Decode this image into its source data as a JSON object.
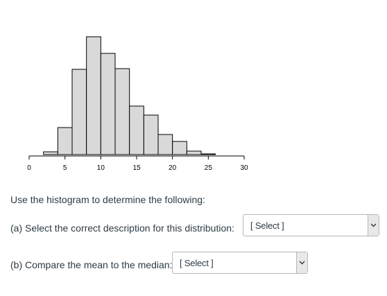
{
  "chart_data": {
    "type": "bar",
    "title": "",
    "xlabel": "",
    "ylabel": "",
    "x_ticks": [
      0,
      5,
      10,
      15,
      20,
      25,
      30
    ],
    "x_tick_labels": [
      "0",
      "5",
      "10",
      "15",
      "20",
      "25",
      "30"
    ],
    "xlim": [
      0,
      30
    ],
    "bin_width": 2,
    "bins": [
      {
        "start": 2,
        "end": 4,
        "value": 4
      },
      {
        "start": 4,
        "end": 6,
        "value": 39
      },
      {
        "start": 6,
        "end": 8,
        "value": 123
      },
      {
        "start": 8,
        "end": 10,
        "value": 170
      },
      {
        "start": 10,
        "end": 12,
        "value": 146
      },
      {
        "start": 12,
        "end": 14,
        "value": 124
      },
      {
        "start": 14,
        "end": 16,
        "value": 70
      },
      {
        "start": 16,
        "end": 18,
        "value": 57
      },
      {
        "start": 18,
        "end": 20,
        "value": 29
      },
      {
        "start": 20,
        "end": 22,
        "value": 19
      },
      {
        "start": 22,
        "end": 24,
        "value": 5
      },
      {
        "start": 24,
        "end": 26,
        "value": 1
      }
    ],
    "ylim": [
      0,
      175
    ],
    "bar_fill": "#d9d9d9",
    "bar_stroke": "#000000",
    "grid": false
  },
  "instruction": "Use the histogram to determine the following:",
  "questions": {
    "a": {
      "label": "(a) Select the correct description for this distribution:",
      "selected": "[ Select ]"
    },
    "b": {
      "label": "(b) Compare the mean to the median:",
      "selected": "[ Select ]"
    }
  },
  "icons": {
    "dropdown": "chevron-down-icon"
  }
}
